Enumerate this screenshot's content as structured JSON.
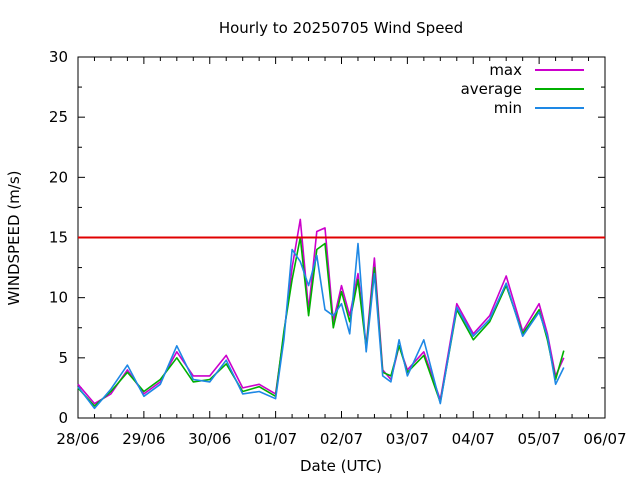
{
  "chart_data": {
    "type": "line",
    "title": "Hourly to 20250705 Wind Speed",
    "xlabel": "Date (UTC)",
    "ylabel": "WINDSPEED (m/s)",
    "ylim": [
      0,
      30
    ],
    "xlim": [
      "2025-06-28",
      "2025-07-06"
    ],
    "x_ticks": [
      "28/06",
      "29/06",
      "30/06",
      "01/07",
      "02/07",
      "03/07",
      "04/07",
      "05/07",
      "06/07"
    ],
    "y_ticks": [
      0,
      5,
      10,
      15,
      20,
      25,
      30
    ],
    "grid": false,
    "legend_position": "top-right",
    "threshold": {
      "value": 15,
      "color": "#e00000"
    },
    "x_dates": [
      "2025-06-28 00:00",
      "2025-06-28 06:00",
      "2025-06-28 12:00",
      "2025-06-28 18:00",
      "2025-06-29 00:00",
      "2025-06-29 06:00",
      "2025-06-29 12:00",
      "2025-06-29 18:00",
      "2025-06-30 00:00",
      "2025-06-30 06:00",
      "2025-06-30 12:00",
      "2025-06-30 18:00",
      "2025-07-01 00:00",
      "2025-07-01 03:00",
      "2025-07-01 06:00",
      "2025-07-01 09:00",
      "2025-07-01 12:00",
      "2025-07-01 15:00",
      "2025-07-01 18:00",
      "2025-07-01 21:00",
      "2025-07-02 00:00",
      "2025-07-02 03:00",
      "2025-07-02 06:00",
      "2025-07-02 09:00",
      "2025-07-02 12:00",
      "2025-07-02 15:00",
      "2025-07-02 18:00",
      "2025-07-02 21:00",
      "2025-07-03 00:00",
      "2025-07-03 06:00",
      "2025-07-03 12:00",
      "2025-07-03 18:00",
      "2025-07-04 00:00",
      "2025-07-04 06:00",
      "2025-07-04 12:00",
      "2025-07-04 18:00",
      "2025-07-05 00:00",
      "2025-07-05 03:00",
      "2025-07-05 06:00",
      "2025-07-05 09:00"
    ],
    "series": [
      {
        "name": "max",
        "color": "#cc00cc",
        "values": [
          2.8,
          1.2,
          2.0,
          4.0,
          2.0,
          3.0,
          5.5,
          3.5,
          3.5,
          5.2,
          2.5,
          2.8,
          2.0,
          7.0,
          12.5,
          16.5,
          9.0,
          15.5,
          15.8,
          8.0,
          11.0,
          8.5,
          12.0,
          6.0,
          13.3,
          4.0,
          3.2,
          6.0,
          4.0,
          5.5,
          1.5,
          9.5,
          7.0,
          8.5,
          11.8,
          7.2,
          9.5,
          7.0,
          3.5,
          5.0
        ]
      },
      {
        "name": "average",
        "color": "#00b000",
        "values": [
          2.5,
          1.0,
          2.2,
          3.8,
          2.2,
          3.2,
          5.0,
          3.0,
          3.2,
          4.5,
          2.2,
          2.6,
          1.8,
          7.2,
          11.5,
          15.0,
          8.5,
          14.0,
          14.5,
          7.5,
          10.5,
          8.0,
          11.5,
          5.8,
          12.5,
          3.8,
          3.5,
          6.0,
          3.8,
          5.2,
          1.3,
          9.0,
          6.5,
          8.0,
          11.0,
          7.0,
          9.0,
          6.5,
          3.2,
          5.6
        ]
      },
      {
        "name": "min",
        "color": "#1e88e5",
        "values": [
          2.6,
          0.8,
          2.4,
          4.4,
          1.8,
          2.8,
          6.0,
          3.2,
          3.0,
          4.8,
          2.0,
          2.2,
          1.6,
          6.5,
          14.0,
          13.0,
          11.0,
          13.5,
          9.0,
          8.5,
          9.5,
          7.0,
          14.5,
          5.5,
          12.0,
          3.5,
          3.0,
          6.5,
          3.5,
          6.5,
          1.2,
          9.2,
          6.8,
          8.2,
          11.2,
          6.8,
          8.8,
          6.8,
          2.8,
          4.2
        ]
      }
    ]
  }
}
